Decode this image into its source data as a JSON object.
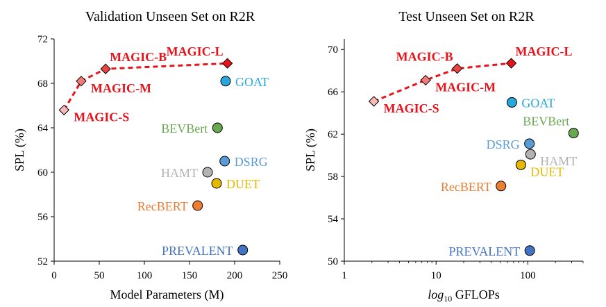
{
  "chart_data": [
    {
      "type": "scatter",
      "title": "Validation Unseen Set on R2R",
      "xlabel": "Model Parameters (M)",
      "ylabel": "SPL (%)",
      "xscale": "linear",
      "xlim": [
        0,
        250
      ],
      "ylim": [
        52,
        72
      ],
      "xticks": [
        0,
        50,
        100,
        150,
        200,
        250
      ],
      "yticks": [
        52,
        56,
        60,
        64,
        68,
        72
      ],
      "xtick_labels": [
        "0",
        "50",
        "100",
        "150",
        "200",
        "250"
      ],
      "ytick_labels": [
        "52",
        "56",
        "60",
        "64",
        "68",
        "72"
      ],
      "points": [
        {
          "name": "MAGIC-S",
          "x": 11,
          "y": 65.6,
          "color": "#f8b9b9",
          "shape": "diamond",
          "emphasis": true,
          "label_pos": "right-below"
        },
        {
          "name": "MAGIC-M",
          "x": 30,
          "y": 68.2,
          "color": "#ef7b7b",
          "shape": "diamond",
          "emphasis": true,
          "label_pos": "right-below"
        },
        {
          "name": "MAGIC-B",
          "x": 57,
          "y": 69.3,
          "color": "#e84444",
          "shape": "diamond",
          "emphasis": true,
          "label_pos": "above-right"
        },
        {
          "name": "MAGIC-L",
          "x": 192,
          "y": 69.8,
          "color": "#e8131a",
          "shape": "diamond",
          "emphasis": true,
          "label_pos": "above-left"
        },
        {
          "name": "GOAT",
          "x": 190,
          "y": 68.2,
          "color": "#28a7dd",
          "shape": "circle",
          "label_pos": "right"
        },
        {
          "name": "BEVBert",
          "x": 181,
          "y": 64.0,
          "color": "#6aa84f",
          "shape": "circle",
          "label_pos": "left"
        },
        {
          "name": "DSRG",
          "x": 189,
          "y": 61.0,
          "color": "#5b9bd5",
          "shape": "circle",
          "label_pos": "right"
        },
        {
          "name": "HAMT",
          "x": 170,
          "y": 60.0,
          "color": "#b3b3b3",
          "shape": "circle",
          "label_pos": "left"
        },
        {
          "name": "DUET",
          "x": 180,
          "y": 59.0,
          "color": "#e6b800",
          "shape": "circle",
          "label_pos": "right"
        },
        {
          "name": "RecBERT",
          "x": 159,
          "y": 57.0,
          "color": "#ed7d31",
          "shape": "circle",
          "label_pos": "left"
        },
        {
          "name": "PREVALENT",
          "x": 209,
          "y": 53.0,
          "color": "#4472c4",
          "shape": "circle",
          "label_pos": "left"
        }
      ],
      "line_series": [
        "MAGIC-S",
        "MAGIC-M",
        "MAGIC-B",
        "MAGIC-L"
      ]
    },
    {
      "type": "scatter",
      "title": "Test Unseen Set on R2R",
      "xlabel_math": "log",
      "xlabel_sub": "10",
      "xlabel_rest": " GFLOPs",
      "ylabel": "SPL (%)",
      "xscale": "log",
      "xlim": [
        1,
        400
      ],
      "ylim": [
        50,
        71
      ],
      "xticks": [
        1,
        10,
        100
      ],
      "yticks": [
        50,
        54,
        58,
        62,
        66,
        70
      ],
      "xtick_labels": [
        "1",
        "10",
        "100"
      ],
      "ytick_labels": [
        "50",
        "54",
        "58",
        "62",
        "66",
        "70"
      ],
      "points": [
        {
          "name": "MAGIC-S",
          "x": 2.1,
          "y": 65.1,
          "color": "#f8b9b9",
          "shape": "diamond",
          "emphasis": true,
          "label_pos": "right-below"
        },
        {
          "name": "MAGIC-M",
          "x": 7.7,
          "y": 67.1,
          "color": "#ef7b7b",
          "shape": "diamond",
          "emphasis": true,
          "label_pos": "right-below"
        },
        {
          "name": "MAGIC-B",
          "x": 17,
          "y": 68.2,
          "color": "#e84444",
          "shape": "diamond",
          "emphasis": true,
          "label_pos": "above-left"
        },
        {
          "name": "MAGIC-L",
          "x": 66,
          "y": 68.7,
          "color": "#e8131a",
          "shape": "diamond",
          "emphasis": true,
          "label_pos": "above-right"
        },
        {
          "name": "GOAT",
          "x": 67,
          "y": 65.0,
          "color": "#28a7dd",
          "shape": "circle",
          "label_pos": "right"
        },
        {
          "name": "BEVBert",
          "x": 315,
          "y": 62.1,
          "color": "#6aa84f",
          "shape": "circle",
          "label_pos": "above-left"
        },
        {
          "name": "DSRG",
          "x": 104,
          "y": 61.1,
          "color": "#5b9bd5",
          "shape": "circle",
          "label_pos": "left"
        },
        {
          "name": "HAMT",
          "x": 107,
          "y": 60.1,
          "color": "#b3b3b3",
          "shape": "circle",
          "label_pos": "right-below"
        },
        {
          "name": "DUET",
          "x": 84,
          "y": 59.1,
          "color": "#e6b800",
          "shape": "circle",
          "label_pos": "right-below"
        },
        {
          "name": "RecBERT",
          "x": 51,
          "y": 57.1,
          "color": "#ed7d31",
          "shape": "circle",
          "label_pos": "left"
        },
        {
          "name": "PREVALENT",
          "x": 105,
          "y": 51.0,
          "color": "#4472c4",
          "shape": "circle",
          "label_pos": "left"
        }
      ],
      "line_series": [
        "MAGIC-S",
        "MAGIC-M",
        "MAGIC-B",
        "MAGIC-L"
      ]
    }
  ]
}
